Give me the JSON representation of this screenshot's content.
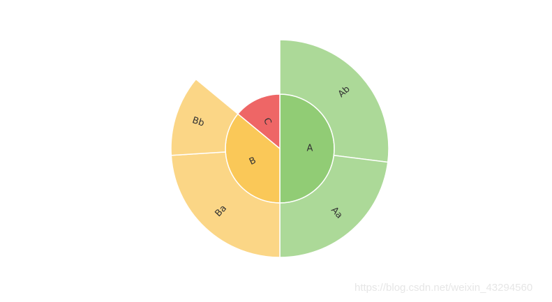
{
  "chart_data": {
    "type": "sunburst",
    "start_angle_deg": 0,
    "clockwise": true,
    "rings": [
      {
        "level": 1,
        "segments": [
          {
            "name": "A",
            "value": 50,
            "color": "#91cc75"
          },
          {
            "name": "B",
            "value": 36,
            "color": "#fac858"
          },
          {
            "name": "C",
            "value": 14,
            "color": "#ee6666"
          }
        ]
      },
      {
        "level": 2,
        "segments": [
          {
            "name": "Ab",
            "parent": "A",
            "value": 27,
            "color": "#acd998"
          },
          {
            "name": "Aa",
            "parent": "A",
            "value": 23,
            "color": "#acd998"
          },
          {
            "name": "Ba",
            "parent": "B",
            "value": 24,
            "color": "#fbd686"
          },
          {
            "name": "Bb",
            "parent": "B",
            "value": 12,
            "color": "#fbd686"
          }
        ]
      }
    ]
  },
  "watermark": "https://blog.csdn.net/weixin_43294560"
}
